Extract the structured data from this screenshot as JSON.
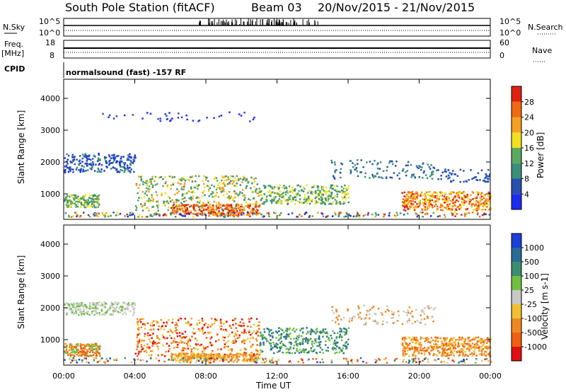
{
  "header": {
    "station": "South Pole Station (fitACF)",
    "beam": "Beam 03",
    "dates": "20/Nov/2015 - 21/Nov/2015"
  },
  "side_labels": {
    "nsky": "N.Sky",
    "freq_line1": "Freq.",
    "freq_line2": "[MHz]",
    "cpid": "CPID",
    "nsearch": "N.Search",
    "nave": "Nave"
  },
  "cpid_text": "normalsound (fast) -157 RF",
  "colors": {
    "power_scale": [
      "#1b2bf0",
      "#2850b0",
      "#3a8f78",
      "#5aa860",
      "#f0e020",
      "#f4a020",
      "#f06a10",
      "#e02010"
    ],
    "velocity_scale": [
      "#1a40d8",
      "#2a6a9a",
      "#3a8e70",
      "#70c040",
      "#c8c8c8",
      "#f0c030",
      "#f08820",
      "#f06010",
      "#e01010"
    ]
  },
  "chart_data": [
    {
      "type": "line",
      "title": "",
      "ylabel": "N.Sky",
      "y_ticks_left": [
        "10^5",
        "10^0"
      ],
      "y_ticks_right": [
        "10^5",
        "10^0"
      ],
      "right_label": "N.Search",
      "xlim": [
        "00:00",
        "24:00"
      ]
    },
    {
      "type": "line",
      "ylabel": "Freq. [MHz]",
      "y_ticks_left": [
        "18",
        "8"
      ],
      "y_ticks_right": [
        "60",
        "0"
      ],
      "right_label": "Nave",
      "xlim": [
        "00:00",
        "24:00"
      ]
    },
    {
      "type": "heatmap",
      "xlabel": "",
      "ylabel": "Slant Range [km]",
      "ylim": [
        200,
        4600
      ],
      "y_ticks": [
        1000,
        2000,
        3000,
        4000
      ],
      "colorbar_label": "Power [dB]",
      "colorbar_ticks": [
        4,
        8,
        12,
        16,
        20,
        24,
        28
      ],
      "colorbar_range": [
        0,
        32
      ]
    },
    {
      "type": "heatmap",
      "xlabel": "Time UT",
      "ylabel": "Slant Range [km]",
      "ylim": [
        200,
        4600
      ],
      "y_ticks": [
        1000,
        2000,
        3000,
        4000
      ],
      "x_ticks": [
        "00:00",
        "04:00",
        "08:00",
        "12:00",
        "16:00",
        "20:00",
        "00:00"
      ],
      "colorbar_label": "Velocity [m s-1]",
      "colorbar_ticks": [
        1000,
        500,
        100,
        25,
        -25,
        -100,
        -500,
        -1000
      ]
    }
  ]
}
